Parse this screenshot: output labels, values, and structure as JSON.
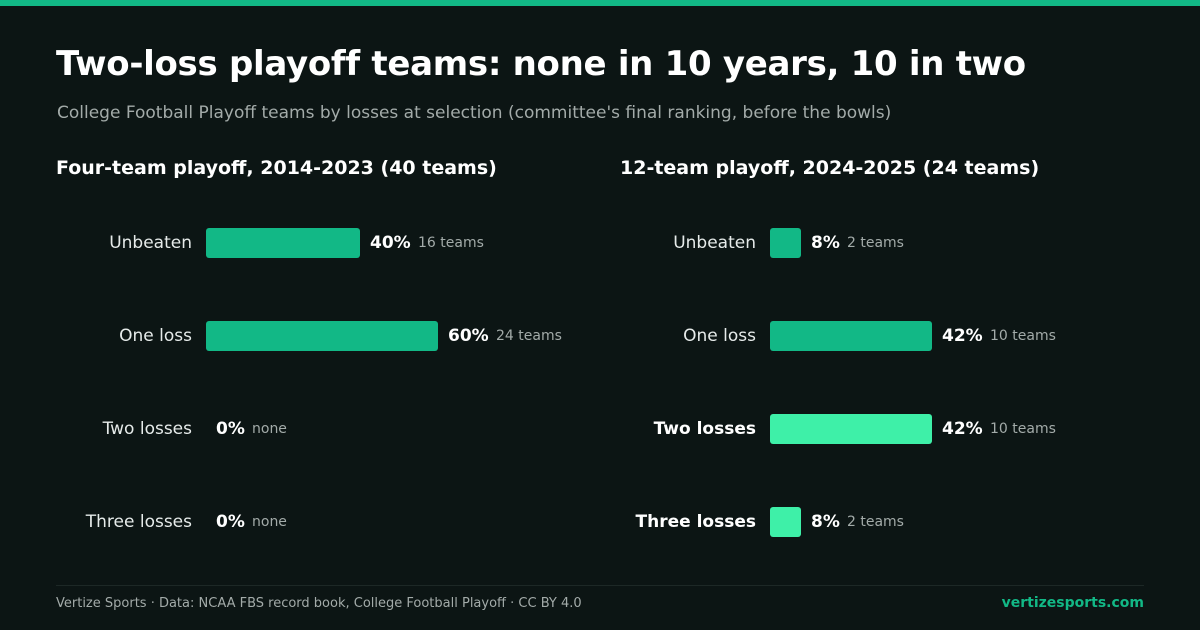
{
  "header": {
    "title": "Two-loss playoff teams: none in 10 years, 10 in two",
    "subtitle": "College Football Playoff teams by losses at selection (committee's final ranking, before the bowls)"
  },
  "colors": {
    "accent": "#12b886",
    "highlight": "#3ef0a8",
    "background": "#0c1514",
    "muted_text": "#a3aba9"
  },
  "chart_data": [
    {
      "type": "bar",
      "orientation": "horizontal",
      "title": "Four-team playoff, 2014-2023 (40 teams)",
      "categories": [
        "Unbeaten",
        "One loss",
        "Two losses",
        "Three losses"
      ],
      "values": [
        40,
        60,
        0,
        0
      ],
      "unit": "%",
      "value_labels": [
        "40%",
        "60%",
        "0%",
        "0%"
      ],
      "count_labels": [
        "16 teams",
        "24 teams",
        "none",
        "none"
      ],
      "highlighted": [
        false,
        false,
        false,
        false
      ],
      "xlim": [
        0,
        100
      ]
    },
    {
      "type": "bar",
      "orientation": "horizontal",
      "title": "12-team playoff, 2024-2025 (24 teams)",
      "categories": [
        "Unbeaten",
        "One loss",
        "Two losses",
        "Three losses"
      ],
      "values": [
        8,
        42,
        42,
        8
      ],
      "unit": "%",
      "value_labels": [
        "8%",
        "42%",
        "42%",
        "8%"
      ],
      "count_labels": [
        "2 teams",
        "10 teams",
        "10 teams",
        "2 teams"
      ],
      "highlighted": [
        false,
        false,
        true,
        true
      ],
      "xlim": [
        0,
        100
      ]
    }
  ],
  "footer": {
    "source": "Vertize Sports · Data: NCAA FBS record book, College Football Playoff · CC BY 4.0",
    "site": "vertizesports.com"
  }
}
